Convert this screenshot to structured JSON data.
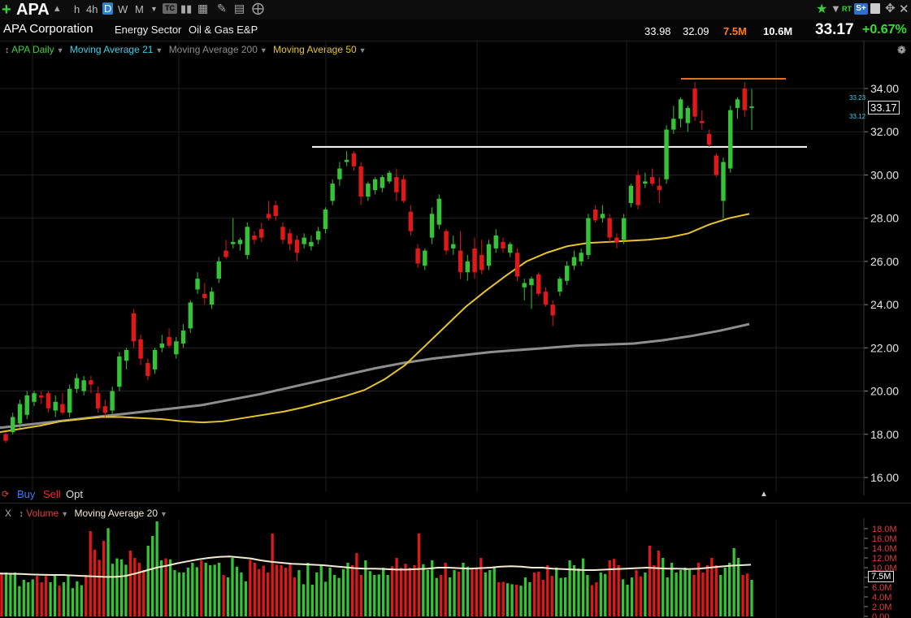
{
  "toolbar": {
    "symbol": "APA",
    "timeframes": [
      "h",
      "4h",
      "D",
      "W",
      "M"
    ],
    "active_timeframe": "D",
    "rt_label": "RT",
    "right_icons": [
      "star-icon",
      "alert-icon",
      "rt-icon",
      "s-plus-icon",
      "save-icon",
      "move-icon",
      "close-icon"
    ]
  },
  "info": {
    "company": "APA Corporation",
    "sector": "Energy Sector",
    "industry": "Oil & Gas E&P",
    "high": "33.98",
    "low": "32.09",
    "volume": "7.5M",
    "avg_volume": "10.6M",
    "last": "33.17",
    "change_pct": "+0.67%"
  },
  "price_panel": {
    "legend": {
      "series": "APA Daily",
      "ma21": "Moving Average 21",
      "ma200": "Moving Average 200",
      "ma50": "Moving Average 50"
    },
    "axis_labels": [
      "34.00",
      "32.00",
      "30.00",
      "28.00",
      "26.00",
      "24.00",
      "22.00",
      "20.00",
      "18.00",
      "16.00"
    ],
    "last_price_tag": "33.17",
    "mini_tags": [
      "33.23",
      "33.12"
    ],
    "trade_buttons": {
      "buy": "Buy",
      "sell": "Sell",
      "opt": "Opt"
    }
  },
  "volume_panel": {
    "close_label": "X",
    "title": "Volume",
    "ma_label": "Moving Average 20",
    "axis_labels": [
      "18.0M",
      "16.0M",
      "14.0M",
      "12.0M",
      "10.0M",
      "8.0M",
      "6.0M",
      "4.0M",
      "2.0M",
      "0.00"
    ],
    "last_volume_tag": "7.5M"
  },
  "colors": {
    "up": "#35c435",
    "down": "#e01818",
    "ma50": "#e7c52a",
    "ma200": "#8e8e8e",
    "ma21": "#3ad0e8",
    "volume_ma": "#f2ecd0",
    "resistance": "#ffffff",
    "high_line": "#e0702b",
    "axis_text": "#e6e6e6",
    "positive_change": "#31e031"
  },
  "chart_data": {
    "type": "candlestick",
    "ylim": [
      16,
      35
    ],
    "levels": [
      {
        "name": "resistance",
        "value": 31.3
      },
      {
        "name": "high",
        "value": 34.45
      }
    ],
    "candles": [
      {
        "o": 18.0,
        "h": 18.1,
        "l": 17.6,
        "c": 17.7
      },
      {
        "o": 18.1,
        "h": 19.0,
        "l": 18.0,
        "c": 18.8
      },
      {
        "o": 18.5,
        "h": 19.6,
        "l": 18.3,
        "c": 19.4
      },
      {
        "o": 18.9,
        "h": 20.0,
        "l": 18.7,
        "c": 19.8
      },
      {
        "o": 19.5,
        "h": 20.0,
        "l": 19.3,
        "c": 19.9
      },
      {
        "o": 19.8,
        "h": 20.0,
        "l": 19.4,
        "c": 19.7
      },
      {
        "o": 19.9,
        "h": 20.0,
        "l": 19.0,
        "c": 19.2
      },
      {
        "o": 19.1,
        "h": 19.8,
        "l": 18.8,
        "c": 19.5
      },
      {
        "o": 19.4,
        "h": 19.9,
        "l": 18.9,
        "c": 19.0
      },
      {
        "o": 19.0,
        "h": 20.3,
        "l": 18.8,
        "c": 20.1
      },
      {
        "o": 20.1,
        "h": 20.8,
        "l": 19.9,
        "c": 20.6
      },
      {
        "o": 20.0,
        "h": 20.7,
        "l": 19.8,
        "c": 20.5
      },
      {
        "o": 20.5,
        "h": 20.7,
        "l": 19.9,
        "c": 20.3
      },
      {
        "o": 19.9,
        "h": 20.2,
        "l": 19.0,
        "c": 19.2
      },
      {
        "o": 19.3,
        "h": 19.6,
        "l": 18.8,
        "c": 19.0
      },
      {
        "o": 19.1,
        "h": 20.2,
        "l": 18.9,
        "c": 20.0
      },
      {
        "o": 20.2,
        "h": 21.8,
        "l": 20.0,
        "c": 21.6
      },
      {
        "o": 21.4,
        "h": 22.0,
        "l": 21.0,
        "c": 21.9
      },
      {
        "o": 23.6,
        "h": 23.8,
        "l": 22.0,
        "c": 22.3
      },
      {
        "o": 22.4,
        "h": 22.6,
        "l": 21.2,
        "c": 21.5
      },
      {
        "o": 21.3,
        "h": 21.5,
        "l": 20.5,
        "c": 20.7
      },
      {
        "o": 21.0,
        "h": 22.0,
        "l": 20.8,
        "c": 21.9
      },
      {
        "o": 22.0,
        "h": 22.6,
        "l": 21.8,
        "c": 22.2
      },
      {
        "o": 22.5,
        "h": 22.9,
        "l": 22.0,
        "c": 22.1
      },
      {
        "o": 21.7,
        "h": 22.5,
        "l": 21.5,
        "c": 22.3
      },
      {
        "o": 22.2,
        "h": 23.1,
        "l": 22.0,
        "c": 22.8
      },
      {
        "o": 22.9,
        "h": 24.2,
        "l": 22.7,
        "c": 24.1
      },
      {
        "o": 24.7,
        "h": 25.5,
        "l": 24.5,
        "c": 25.2
      },
      {
        "o": 24.5,
        "h": 25.0,
        "l": 24.0,
        "c": 24.3
      },
      {
        "o": 24.0,
        "h": 24.8,
        "l": 23.8,
        "c": 24.6
      },
      {
        "o": 25.2,
        "h": 26.2,
        "l": 25.0,
        "c": 26.0
      },
      {
        "o": 26.5,
        "h": 27.0,
        "l": 26.1,
        "c": 26.2
      },
      {
        "o": 26.8,
        "h": 28.0,
        "l": 26.6,
        "c": 26.9
      },
      {
        "o": 26.8,
        "h": 27.1,
        "l": 26.5,
        "c": 27.0
      },
      {
        "o": 26.3,
        "h": 27.8,
        "l": 26.1,
        "c": 27.6
      },
      {
        "o": 27.2,
        "h": 27.4,
        "l": 26.8,
        "c": 27.0
      },
      {
        "o": 27.5,
        "h": 27.8,
        "l": 26.9,
        "c": 27.1
      },
      {
        "o": 28.2,
        "h": 28.8,
        "l": 27.9,
        "c": 28.0
      },
      {
        "o": 28.6,
        "h": 28.8,
        "l": 27.9,
        "c": 28.1
      },
      {
        "o": 27.6,
        "h": 27.8,
        "l": 26.8,
        "c": 27.0
      },
      {
        "o": 27.3,
        "h": 27.5,
        "l": 26.5,
        "c": 26.8
      },
      {
        "o": 27.0,
        "h": 27.2,
        "l": 26.0,
        "c": 26.4
      },
      {
        "o": 26.8,
        "h": 27.3,
        "l": 26.6,
        "c": 27.1
      },
      {
        "o": 26.7,
        "h": 27.2,
        "l": 26.5,
        "c": 26.9
      },
      {
        "o": 27.0,
        "h": 27.6,
        "l": 26.8,
        "c": 27.4
      },
      {
        "o": 27.5,
        "h": 28.5,
        "l": 27.3,
        "c": 28.4
      },
      {
        "o": 28.8,
        "h": 29.8,
        "l": 28.6,
        "c": 29.6
      },
      {
        "o": 29.8,
        "h": 30.6,
        "l": 29.5,
        "c": 30.3
      },
      {
        "o": 30.6,
        "h": 31.1,
        "l": 30.4,
        "c": 30.7
      },
      {
        "o": 31.0,
        "h": 31.1,
        "l": 30.2,
        "c": 30.4
      },
      {
        "o": 30.4,
        "h": 30.6,
        "l": 28.6,
        "c": 29.0
      },
      {
        "o": 29.0,
        "h": 29.7,
        "l": 28.8,
        "c": 29.6
      },
      {
        "o": 29.3,
        "h": 29.9,
        "l": 29.1,
        "c": 29.8
      },
      {
        "o": 29.4,
        "h": 30.0,
        "l": 29.2,
        "c": 29.9
      },
      {
        "o": 29.7,
        "h": 30.2,
        "l": 29.6,
        "c": 30.1
      },
      {
        "o": 29.9,
        "h": 30.3,
        "l": 28.8,
        "c": 29.2
      },
      {
        "o": 29.8,
        "h": 30.0,
        "l": 28.7,
        "c": 28.8
      },
      {
        "o": 28.3,
        "h": 28.6,
        "l": 27.2,
        "c": 27.4
      },
      {
        "o": 26.6,
        "h": 26.8,
        "l": 25.7,
        "c": 25.9
      },
      {
        "o": 25.8,
        "h": 26.6,
        "l": 25.6,
        "c": 26.5
      },
      {
        "o": 27.1,
        "h": 28.5,
        "l": 26.8,
        "c": 28.2
      },
      {
        "o": 27.7,
        "h": 29.1,
        "l": 27.5,
        "c": 28.9
      },
      {
        "o": 27.4,
        "h": 27.5,
        "l": 26.3,
        "c": 26.5
      },
      {
        "o": 26.6,
        "h": 27.2,
        "l": 26.3,
        "c": 26.8
      },
      {
        "o": 26.5,
        "h": 27.4,
        "l": 25.2,
        "c": 25.5
      },
      {
        "o": 25.5,
        "h": 26.3,
        "l": 25.1,
        "c": 26.0
      },
      {
        "o": 26.6,
        "h": 27.1,
        "l": 25.2,
        "c": 25.5
      },
      {
        "o": 26.3,
        "h": 27.0,
        "l": 25.4,
        "c": 25.6
      },
      {
        "o": 25.8,
        "h": 27.0,
        "l": 25.6,
        "c": 26.8
      },
      {
        "o": 26.6,
        "h": 27.5,
        "l": 26.4,
        "c": 27.2
      },
      {
        "o": 26.9,
        "h": 27.1,
        "l": 26.4,
        "c": 26.6
      },
      {
        "o": 26.4,
        "h": 26.9,
        "l": 26.2,
        "c": 26.8
      },
      {
        "o": 26.4,
        "h": 26.6,
        "l": 25.1,
        "c": 25.3
      },
      {
        "o": 24.8,
        "h": 25.2,
        "l": 24.2,
        "c": 25.0
      },
      {
        "o": 24.9,
        "h": 25.3,
        "l": 23.8,
        "c": 25.2
      },
      {
        "o": 25.4,
        "h": 25.5,
        "l": 24.4,
        "c": 24.5
      },
      {
        "o": 24.6,
        "h": 24.8,
        "l": 23.9,
        "c": 24.0
      },
      {
        "o": 24.0,
        "h": 24.2,
        "l": 23.0,
        "c": 23.5
      },
      {
        "o": 24.6,
        "h": 25.3,
        "l": 24.4,
        "c": 25.2
      },
      {
        "o": 25.1,
        "h": 26.0,
        "l": 24.9,
        "c": 25.8
      },
      {
        "o": 25.8,
        "h": 26.5,
        "l": 25.6,
        "c": 26.2
      },
      {
        "o": 26.0,
        "h": 26.6,
        "l": 25.8,
        "c": 26.4
      },
      {
        "o": 26.3,
        "h": 28.2,
        "l": 26.1,
        "c": 28.0
      },
      {
        "o": 28.4,
        "h": 28.6,
        "l": 27.8,
        "c": 27.9
      },
      {
        "o": 28.0,
        "h": 28.6,
        "l": 27.8,
        "c": 28.2
      },
      {
        "o": 28.0,
        "h": 28.2,
        "l": 26.9,
        "c": 27.1
      },
      {
        "o": 27.1,
        "h": 27.3,
        "l": 26.6,
        "c": 26.9
      },
      {
        "o": 27.0,
        "h": 28.2,
        "l": 26.8,
        "c": 28.0
      },
      {
        "o": 28.7,
        "h": 29.6,
        "l": 28.5,
        "c": 29.5
      },
      {
        "o": 30.0,
        "h": 30.2,
        "l": 28.4,
        "c": 28.6
      },
      {
        "o": 29.6,
        "h": 30.1,
        "l": 29.4,
        "c": 29.7
      },
      {
        "o": 29.9,
        "h": 30.3,
        "l": 29.5,
        "c": 29.6
      },
      {
        "o": 29.5,
        "h": 29.9,
        "l": 28.7,
        "c": 29.3
      },
      {
        "o": 29.8,
        "h": 32.3,
        "l": 29.6,
        "c": 32.1
      },
      {
        "o": 32.1,
        "h": 33.2,
        "l": 31.9,
        "c": 32.6
      },
      {
        "o": 32.6,
        "h": 33.6,
        "l": 32.2,
        "c": 33.5
      },
      {
        "o": 32.4,
        "h": 33.2,
        "l": 32.0,
        "c": 33.1
      },
      {
        "o": 34.0,
        "h": 34.3,
        "l": 32.5,
        "c": 32.7
      },
      {
        "o": 32.5,
        "h": 33.0,
        "l": 32.1,
        "c": 32.4
      },
      {
        "o": 31.9,
        "h": 32.1,
        "l": 31.3,
        "c": 31.4
      },
      {
        "o": 30.9,
        "h": 31.0,
        "l": 29.9,
        "c": 30.0
      },
      {
        "o": 28.8,
        "h": 30.8,
        "l": 28.0,
        "c": 30.6
      },
      {
        "o": 30.3,
        "h": 33.2,
        "l": 30.1,
        "c": 33.0
      },
      {
        "o": 33.1,
        "h": 33.6,
        "l": 32.6,
        "c": 33.5
      },
      {
        "o": 34.0,
        "h": 34.3,
        "l": 32.7,
        "c": 33.0
      },
      {
        "o": 33.1,
        "h": 33.98,
        "l": 32.09,
        "c": 33.17
      }
    ],
    "ma50": [
      18.1,
      18.25,
      18.4,
      18.6,
      18.7,
      18.8,
      18.8,
      18.75,
      18.7,
      18.6,
      18.55,
      18.6,
      18.75,
      18.9,
      19.05,
      19.25,
      19.5,
      19.75,
      20.05,
      20.55,
      21.2,
      22.1,
      23.0,
      23.9,
      24.65,
      25.35,
      26.0,
      26.4,
      26.7,
      26.85,
      26.9,
      26.95,
      27.0,
      27.1,
      27.3,
      27.7,
      28.0,
      28.2
    ],
    "ma200": [
      18.3,
      18.45,
      18.6,
      18.75,
      18.9,
      19.05,
      19.2,
      19.35,
      19.6,
      19.85,
      20.15,
      20.45,
      20.75,
      21.05,
      21.3,
      21.5,
      21.65,
      21.8,
      21.9,
      22.0,
      22.1,
      22.15,
      22.2,
      22.35,
      22.55,
      22.8,
      23.1
    ],
    "volume": [
      9.0,
      9.0,
      8.7,
      9.0,
      6.2,
      7.5,
      7.0,
      7.6,
      8.3,
      7.0,
      8.3,
      7.0,
      8.6,
      6.3,
      7.0,
      8.4,
      5.8,
      7.2,
      6.4,
      8.5,
      17.5,
      13.7,
      11.6,
      15.5,
      18.1,
      10.8,
      11.9,
      11.7,
      10.6,
      13.5,
      12.0,
      11.0,
      9.5,
      14.5,
      16.5,
      19.5,
      11.5,
      11.9,
      11.7,
      9.5,
      9.0,
      9.0,
      10.0,
      11.0,
      10.1,
      11.5,
      11.0,
      10.5,
      10.6,
      11.0,
      8.5,
      8.0,
      12.0,
      10.2,
      9.0,
      7.2,
      11.6,
      11.0,
      9.7,
      10.4,
      9.0,
      17.0,
      10.6,
      10.5,
      10.0,
      11.0,
      8.0,
      9.5,
      6.6,
      11.0,
      6.5,
      9.0,
      10.5,
      7.1,
      10.0,
      8.5,
      7.9,
      9.7,
      11.0,
      10.5,
      13.0,
      8.5,
      11.5,
      9.3,
      8.5,
      8.6,
      10.0,
      8.5,
      10.3,
      12.0,
      10.0,
      10.8,
      10.0,
      10.5,
      17.0,
      10.7,
      9.5,
      11.5,
      7.9,
      8.5,
      11.0,
      8.0,
      9.5,
      9.2,
      11.0,
      10.2,
      10.0,
      10.0,
      12.0,
      9.0,
      9.5,
      10.0,
      7.0,
      7.1,
      6.8,
      6.6,
      6.5,
      6.3,
      8.0,
      7.0,
      9.0,
      9.2,
      7.5,
      10.5,
      8.3,
      10.0,
      7.9,
      8.0,
      11.5,
      10.5,
      9.8,
      11.9,
      8.5,
      6.4,
      7.0,
      9.0,
      8.7,
      11.5,
      11.8,
      10.5,
      7.6,
      6.5,
      8.0,
      9.5,
      8.2,
      9.0,
      14.5,
      10.5,
      13.5,
      12.0,
      8.0,
      11.0,
      9.0,
      9.5,
      10.0,
      9.5,
      8.5,
      11.0,
      9.0,
      10.5,
      12.0,
      10.5,
      8.5,
      10.0,
      11.0,
      14.0,
      12.0,
      8.5,
      8.8,
      7.5
    ],
    "volume_ma20": [
      8.8,
      8.75,
      8.7,
      8.6,
      8.55,
      8.5,
      8.5,
      8.4,
      8.3,
      8.2,
      8.1,
      8.1,
      8.3,
      8.8,
      9.4,
      10.0,
      10.4,
      10.9,
      11.3,
      11.7,
      12.0,
      12.2,
      12.3,
      12.1,
      11.9,
      11.5,
      11.2,
      11.0,
      10.8,
      10.7,
      10.6,
      10.5,
      10.3,
      10.1,
      9.9,
      9.8,
      9.8,
      9.7,
      9.6,
      9.6,
      9.7,
      9.8,
      10.0,
      10.0,
      9.9,
      9.8,
      9.9,
      10.0,
      10.2,
      10.3,
      10.2,
      10.0,
      10.0,
      9.8,
      9.7,
      9.6,
      9.5,
      9.5,
      9.6,
      9.7,
      9.8,
      9.9,
      10.0,
      9.9,
      9.8,
      9.8,
      9.7,
      9.8,
      10.0,
      10.2,
      10.4,
      10.5,
      10.6
    ]
  }
}
